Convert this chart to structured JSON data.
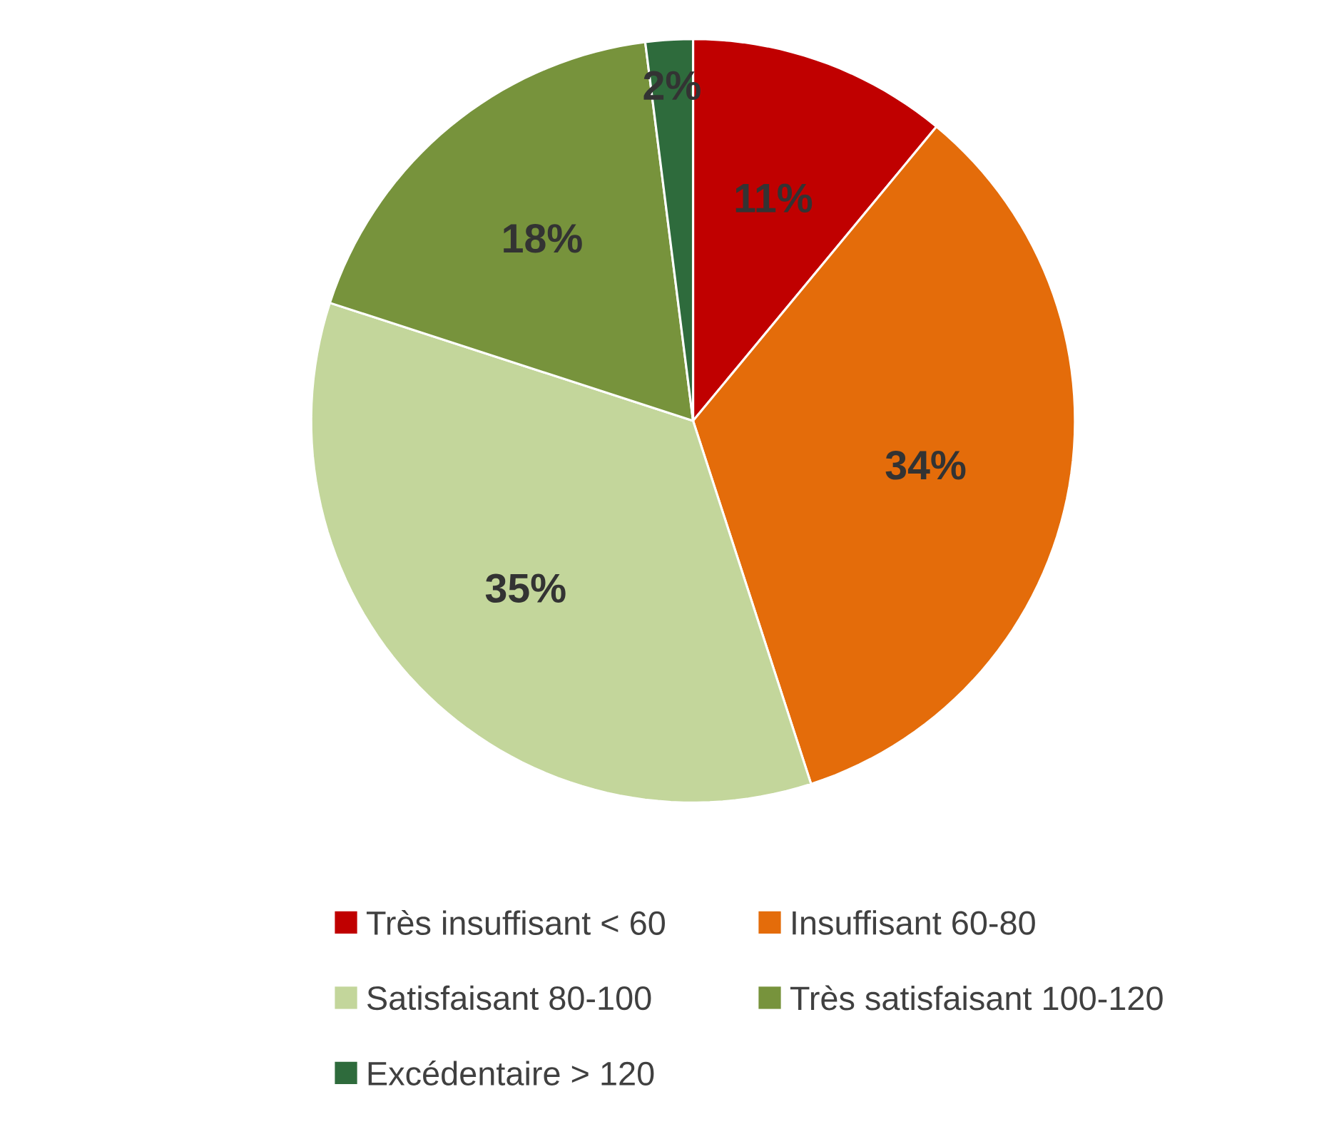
{
  "chart_data": {
    "type": "pie",
    "categories": [
      "Très insuffisant < 60",
      "Insuffisant 60-80",
      "Satisfaisant 80-100",
      "Très satisfaisant 100-120",
      "Excédentaire > 120"
    ],
    "values": [
      11,
      34,
      35,
      18,
      2
    ],
    "value_labels": [
      "11%",
      "34%",
      "35%",
      "18%",
      "2%"
    ],
    "colors": [
      "#c00000",
      "#e46c0a",
      "#c3d69b",
      "#77933c",
      "#2e6b3c"
    ],
    "legend": "bottom"
  }
}
